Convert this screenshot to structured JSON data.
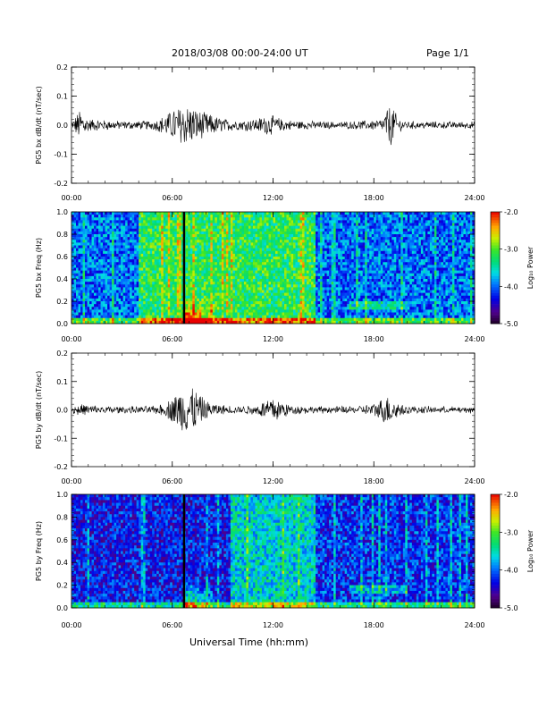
{
  "header": {
    "title": "2018/03/08   00:00-24:00 UT",
    "page": "Page 1/1"
  },
  "x_axis_label": "Universal Time (hh:mm)",
  "chart_data": [
    {
      "type": "line",
      "ylabel": "PG5 bx dB/dt (nT/sec)",
      "xlim": [
        0,
        24
      ],
      "ylim": [
        -0.2,
        0.2
      ],
      "xticks": [
        "00:00",
        "06:00",
        "12:00",
        "18:00",
        "24:00"
      ],
      "yticks": [
        "0.2",
        "0.1",
        "0.0",
        "-0.1",
        "-0.2"
      ],
      "x_hours": [
        0,
        0.5,
        1,
        2,
        3,
        4,
        5,
        5.5,
        6,
        6.5,
        7,
        7.5,
        8,
        8.5,
        9,
        10,
        11,
        11.5,
        12,
        12.5,
        13,
        14,
        15,
        16,
        17,
        18,
        18.5,
        19,
        19.5,
        20,
        21,
        22,
        23,
        24
      ],
      "envelope": [
        0.01,
        0.05,
        0.02,
        0.015,
        0.012,
        0.012,
        0.015,
        0.03,
        0.05,
        0.06,
        0.07,
        0.05,
        0.04,
        0.03,
        0.02,
        0.015,
        0.02,
        0.03,
        0.03,
        0.02,
        0.015,
        0.012,
        0.01,
        0.01,
        0.012,
        0.015,
        0.02,
        0.07,
        0.02,
        0.012,
        0.01,
        0.01,
        0.01,
        0.01
      ]
    },
    {
      "type": "heatmap",
      "ylabel": "PG5 bx Freq (Hz)",
      "xlim": [
        0,
        24
      ],
      "ylim": [
        0,
        1.0
      ],
      "xticks": [
        "00:00",
        "06:00",
        "12:00",
        "18:00",
        "24:00"
      ],
      "yticks": [
        "1.0",
        "0.8",
        "0.6",
        "0.4",
        "0.2",
        "0.0"
      ],
      "colorbar": {
        "label": "Log₁₀ Power",
        "range": [
          -5.0,
          -2.0
        ],
        "ticks": [
          "-2.0",
          "-3.0",
          "-4.0",
          "-5.0"
        ]
      },
      "data_gap_hour": 6.7,
      "segments_hours": [
        {
          "from": 0,
          "to": 4.0,
          "level": -4.0
        },
        {
          "from": 4.0,
          "to": 14.5,
          "level": -3.2
        },
        {
          "from": 14.5,
          "to": 24,
          "level": -4.0
        }
      ]
    },
    {
      "type": "line",
      "ylabel": "PG5 by dB/dt (nT/sec)",
      "xlim": [
        0,
        24
      ],
      "ylim": [
        -0.2,
        0.2
      ],
      "xticks": [
        "00:00",
        "06:00",
        "12:00",
        "18:00",
        "24:00"
      ],
      "yticks": [
        "0.2",
        "0.1",
        "0.0",
        "-0.1",
        "-0.2"
      ],
      "x_hours": [
        0,
        0.5,
        1,
        2,
        3,
        4,
        5,
        5.5,
        6,
        6.5,
        7,
        7.5,
        8,
        8.5,
        9,
        10,
        11,
        11.5,
        12,
        12.5,
        13,
        14,
        15,
        16,
        17,
        18,
        18.5,
        19,
        19.5,
        20,
        21,
        22,
        23,
        24
      ],
      "envelope": [
        0.01,
        0.02,
        0.015,
        0.012,
        0.01,
        0.01,
        0.012,
        0.02,
        0.04,
        0.07,
        0.09,
        0.06,
        0.03,
        0.02,
        0.015,
        0.012,
        0.015,
        0.03,
        0.04,
        0.03,
        0.015,
        0.01,
        0.01,
        0.01,
        0.012,
        0.02,
        0.04,
        0.05,
        0.02,
        0.012,
        0.01,
        0.01,
        0.01,
        0.01
      ]
    },
    {
      "type": "heatmap",
      "ylabel": "PG5 by Freq (Hz)",
      "xlim": [
        0,
        24
      ],
      "ylim": [
        0,
        1.0
      ],
      "xticks": [
        "00:00",
        "06:00",
        "12:00",
        "18:00",
        "24:00"
      ],
      "yticks": [
        "1.0",
        "0.8",
        "0.6",
        "0.4",
        "0.2",
        "0.0"
      ],
      "colorbar": {
        "label": "Log₁₀ Power",
        "range": [
          -5.0,
          -2.0
        ],
        "ticks": [
          "-2.0",
          "-3.0",
          "-4.0",
          "-5.0"
        ]
      },
      "data_gap_hour": 6.7,
      "segments_hours": [
        {
          "from": 0,
          "to": 9.5,
          "level": -4.3
        },
        {
          "from": 9.5,
          "to": 14.5,
          "level": -3.6
        },
        {
          "from": 14.5,
          "to": 24,
          "level": -4.2
        }
      ]
    }
  ]
}
